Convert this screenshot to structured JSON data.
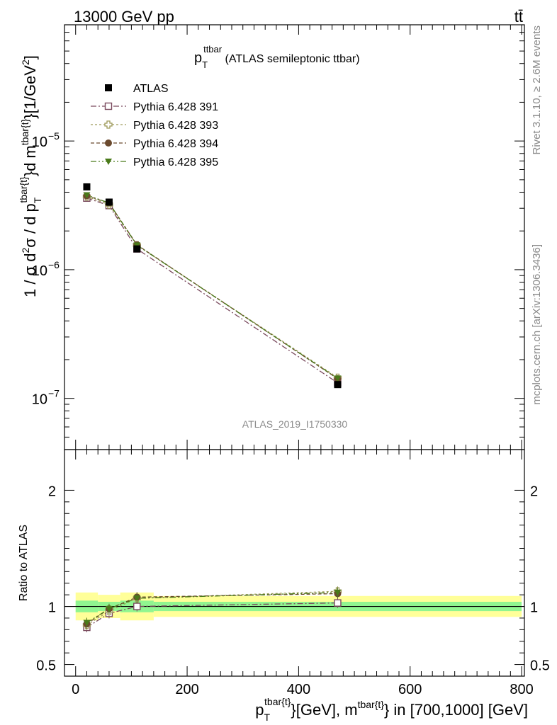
{
  "header": {
    "energy_label": "13000 GeV pp",
    "process_label": "tt̄"
  },
  "side_labels": {
    "rivet": "Rivet 3.1.10, ≥ 2.6M events",
    "mcplots": "mcplots.cern.ch [arXiv:1306.3436]"
  },
  "watermark": "ATLAS_2019_I1750330",
  "chart_data": [
    {
      "type": "scatter",
      "panel": "main",
      "title": {
        "main": "p",
        "sub": "T",
        "sup": "ttbar",
        "rest": " (ATLAS semileptonic ttbar)"
      },
      "ylabel": "1 / σ d²σ / d p_T^{tbar{t}} d m^{tbar{t}} [1/GeV²]",
      "yscale": "log",
      "ylim": [
        4e-08,
        8e-05
      ],
      "xlim": [
        -20,
        805
      ],
      "y_tick_labels": [
        {
          "value": 1e-05,
          "base": "10",
          "exp": "−5"
        },
        {
          "value": 1e-06,
          "base": "10",
          "exp": "−6"
        },
        {
          "value": 1e-07,
          "base": "10",
          "exp": "−7"
        }
      ],
      "x": [
        20,
        60,
        110,
        470
      ],
      "series": [
        {
          "name": "ATLAS",
          "marker": "filled-square",
          "color": "#000000",
          "values": [
            4.4e-06,
            3.35e-06,
            1.45e-06,
            1.28e-07
          ]
        },
        {
          "name": "Pythia 6.428 391",
          "marker": "open-square",
          "color": "#7a4a5e",
          "dash": "8,3,2,3",
          "values": [
            3.6e-06,
            3.15e-06,
            1.45e-06,
            1.32e-07
          ]
        },
        {
          "name": "Pythia 6.428 393",
          "marker": "open-cross",
          "color": "#9e9a5a",
          "dash": "3,3",
          "values": [
            3.7e-06,
            3.2e-06,
            1.55e-06,
            1.45e-07
          ]
        },
        {
          "name": "Pythia 6.428 394",
          "marker": "filled-circle",
          "color": "#6b4a2e",
          "dash": "5,3",
          "values": [
            3.75e-06,
            3.3e-06,
            1.56e-06,
            1.42e-07
          ]
        },
        {
          "name": "Pythia 6.428 395",
          "marker": "filled-triangle-down",
          "color": "#4a7a1a",
          "dash": "8,3,2,3,2,3",
          "values": [
            3.8e-06,
            3.3e-06,
            1.55e-06,
            1.43e-07
          ]
        }
      ],
      "legend_position": "top-left"
    },
    {
      "type": "line",
      "panel": "ratio",
      "ylabel": "Ratio to ATLAS",
      "xlabel": {
        "p": "p",
        "T": "T",
        "sup1": "tbar{t}",
        "mid": "}[GeV], m",
        "sup2": "tbar{t}",
        "tail": "} in [700,1000] [GeV]"
      },
      "ylim": [
        0.4,
        2.35
      ],
      "xlim": [
        -20,
        805
      ],
      "y_tick_labels": [
        "2",
        "1",
        "0.5"
      ],
      "y_tick_values": [
        2,
        1,
        0.5
      ],
      "x_tick_labels": [
        "0",
        "200",
        "400",
        "600",
        "800"
      ],
      "x_tick_values": [
        0,
        200,
        400,
        600,
        800
      ],
      "bins": [
        {
          "lo": 0,
          "hi": 40,
          "stat": 0.05,
          "total": 0.12
        },
        {
          "lo": 40,
          "hi": 80,
          "stat": 0.04,
          "total": 0.1
        },
        {
          "lo": 80,
          "hi": 140,
          "stat": 0.05,
          "total": 0.12
        },
        {
          "lo": 140,
          "hi": 800,
          "stat": 0.04,
          "total": 0.09
        }
      ],
      "x": [
        20,
        60,
        110,
        470
      ],
      "series": [
        {
          "name": "Pythia 6.428 391",
          "values": [
            0.82,
            0.94,
            1.0,
            1.03
          ]
        },
        {
          "name": "Pythia 6.428 393",
          "values": [
            0.84,
            0.96,
            1.07,
            1.13
          ]
        },
        {
          "name": "Pythia 6.428 394",
          "values": [
            0.85,
            0.98,
            1.08,
            1.11
          ]
        },
        {
          "name": "Pythia 6.428 395",
          "values": [
            0.86,
            0.98,
            1.07,
            1.12
          ]
        }
      ]
    }
  ]
}
